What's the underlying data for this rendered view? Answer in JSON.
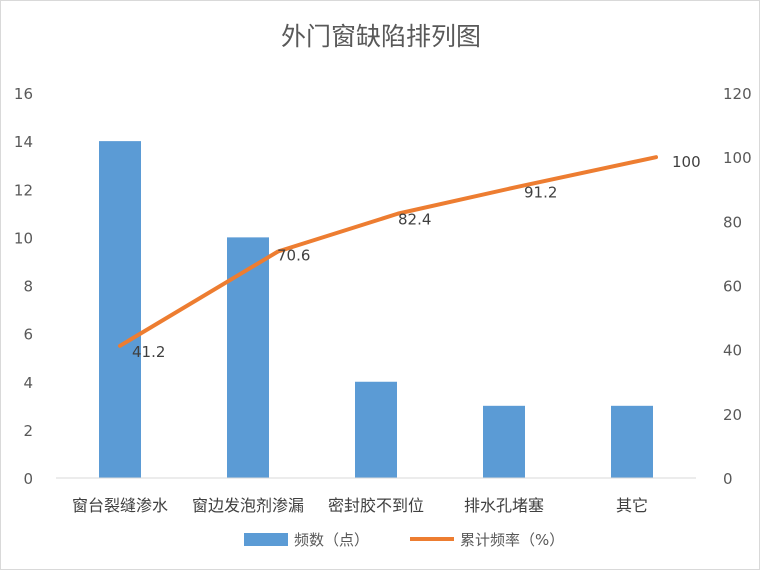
{
  "chart_data": {
    "type": "bar",
    "title": "外门窗缺陷排列图",
    "categories": [
      "窗台裂缝渗水",
      "窗边发泡剂渗漏",
      "密封胶不到位",
      "排水孔堵塞",
      "其它"
    ],
    "series": [
      {
        "name": "频数（点）",
        "type": "bar",
        "axis": "left",
        "color": "#5b9bd5",
        "values": [
          14,
          10,
          4,
          3,
          3
        ]
      },
      {
        "name": "累计频率（%）",
        "type": "line",
        "axis": "right",
        "color": "#ed7d31",
        "values": [
          41.2,
          70.6,
          82.4,
          91.2,
          100
        ]
      }
    ],
    "data_labels": [
      "41.2",
      "70.6",
      "82.4",
      "91.2",
      "100"
    ],
    "y_left": {
      "min": 0,
      "max": 16,
      "step": 2,
      "ticks": [
        "0",
        "2",
        "4",
        "6",
        "8",
        "10",
        "12",
        "14",
        "16"
      ]
    },
    "y_right": {
      "min": 0,
      "max": 120,
      "step": 20,
      "ticks": [
        "0",
        "20",
        "40",
        "60",
        "80",
        "100",
        "120"
      ]
    },
    "grid": false,
    "legend": "bottom"
  }
}
